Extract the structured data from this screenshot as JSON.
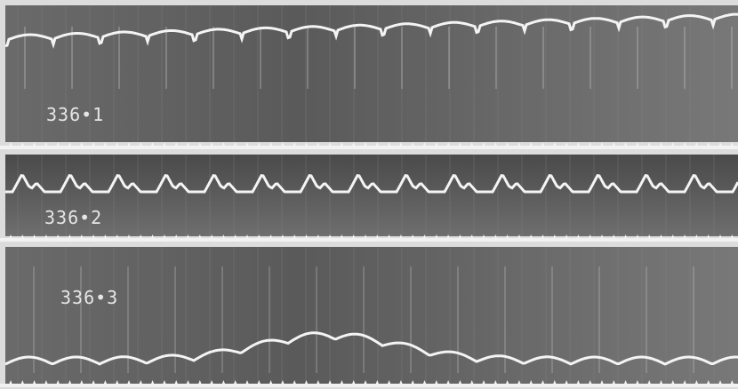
{
  "traces": [
    {
      "label": "336•1"
    },
    {
      "label": "336•2"
    },
    {
      "label": "336•3"
    }
  ]
}
